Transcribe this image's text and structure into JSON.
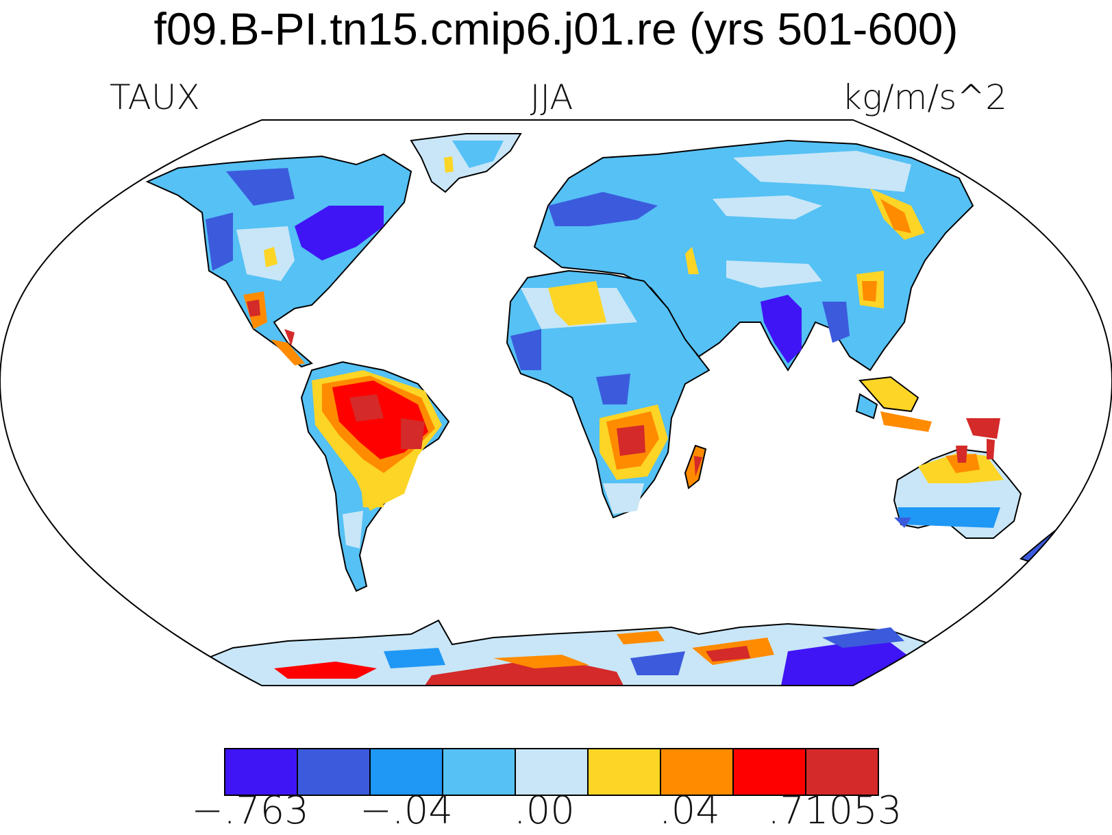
{
  "title": "f09.B-PI.tn15.cmip6.j01.re (yrs 501-600)",
  "left_label": "TAUX",
  "center_label": "JJA",
  "right_label": "kg/m/s^2",
  "colorbar": {
    "colors": [
      "#3f15f5",
      "#3b5bdc",
      "#1f97f5",
      "#55c1f5",
      "#c8e6f7",
      "#fcd526",
      "#ff8b00",
      "#ff0000",
      "#d42a29"
    ],
    "labels": [
      "−.763",
      "−.04",
      ".00",
      ".04",
      ".71053"
    ]
  },
  "land_bins": {
    "strong_negative": "#3f15f5",
    "negative": "#3b5bdc",
    "moderate_negative": "#1f97f5",
    "weak_negative": "#55c1f5",
    "near_zero": "#c8e6f7",
    "weak_positive": "#fcd526",
    "moderate_positive": "#ff8b00",
    "positive": "#ff0000",
    "strong_positive": "#d42a29"
  }
}
